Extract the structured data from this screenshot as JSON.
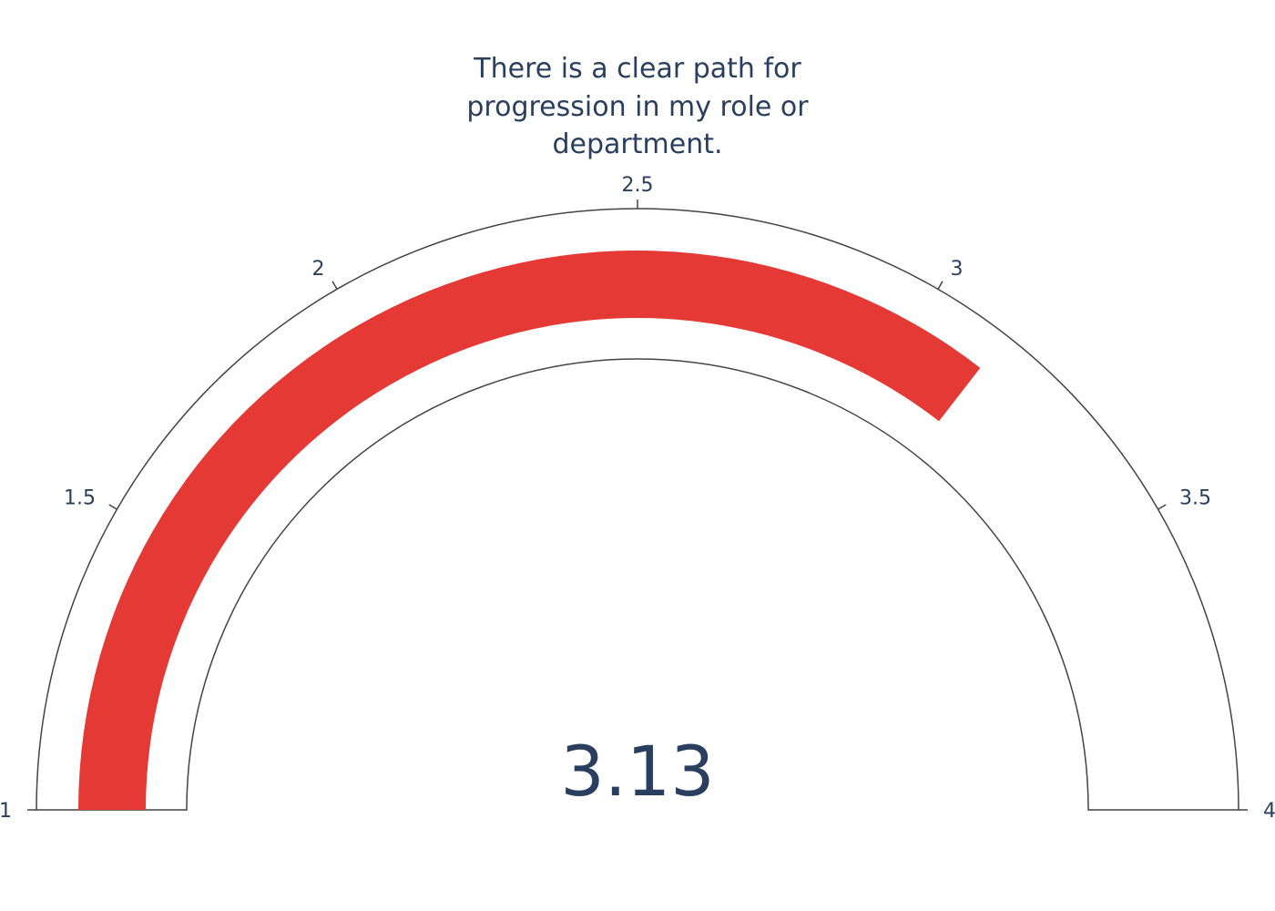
{
  "chart_data": {
    "type": "gauge",
    "title_lines": [
      "There is a clear path for",
      "progression in my role or",
      "department."
    ],
    "value": 3.13,
    "value_label": "3.13",
    "range": [
      1,
      4
    ],
    "ticks": [
      1,
      1.5,
      2,
      2.5,
      3,
      3.5,
      4
    ],
    "tick_labels": [
      "1",
      "1.5",
      "2",
      "2.5",
      "3",
      "3.5",
      "4"
    ],
    "bar_color": "#e53935",
    "outline_color": "#444444",
    "text_color": "#2a3f5f"
  }
}
